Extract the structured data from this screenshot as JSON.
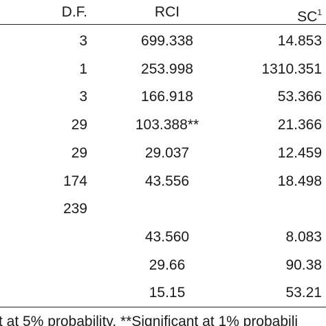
{
  "table": {
    "header": [
      "D.F.",
      "RCI",
      "SC"
    ],
    "header_sc_note": "1",
    "rows": [
      [
        "3",
        "699.338",
        "14.853"
      ],
      [
        "1",
        "253.998",
        "1310.351"
      ],
      [
        "3",
        "166.918",
        "53.366"
      ],
      [
        "29",
        "103.388**",
        "21.366"
      ],
      [
        "29",
        "29.037",
        "12.459"
      ],
      [
        "174",
        "43.556",
        "18.498"
      ],
      [
        "239",
        null,
        null
      ],
      [
        null,
        "43.560",
        "8.083"
      ],
      [
        null,
        "29.66",
        "90.38"
      ],
      [
        null,
        "15.15",
        "53.21"
      ]
    ]
  },
  "footnote": "t at 5% probability. **Significant at 1% probabili"
}
